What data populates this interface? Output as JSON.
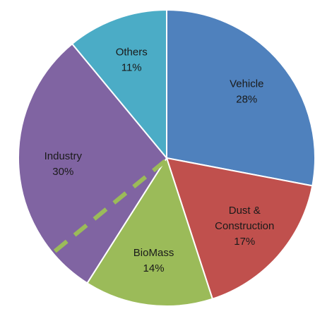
{
  "chart_data": {
    "type": "pie",
    "categories": [
      "Vehicle",
      "Dust & Construction",
      "BioMass",
      "Industry",
      "Others"
    ],
    "values": [
      28,
      17,
      14,
      30,
      11
    ],
    "value_labels": [
      "28%",
      "17%",
      "14%",
      "30%",
      "11%"
    ],
    "colors": [
      "#4f81bd",
      "#c0504d",
      "#9bbb59",
      "#8064a2",
      "#4bacc6"
    ]
  }
}
